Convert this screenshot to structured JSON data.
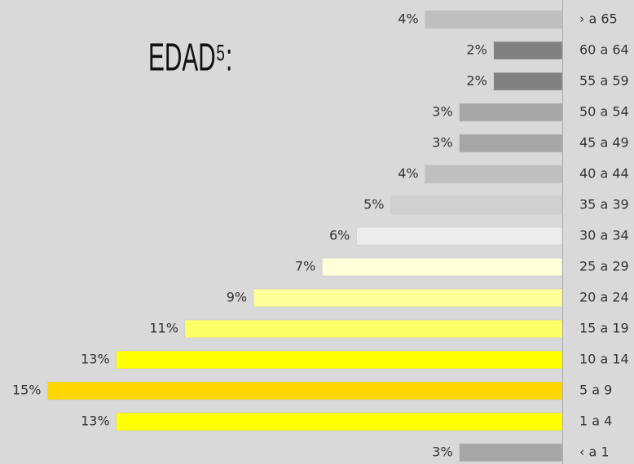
{
  "chart_data": {
    "type": "barh",
    "title": "EDAD⁵:",
    "categories": [
      "› a  65",
      "60 a 64",
      "55 a 59",
      "50 a 54",
      "45 a 49",
      "40 a 44",
      "35 a 39",
      "30 a 34",
      "25 a 29",
      "20 a 24",
      "15 a 19",
      "10 a 14",
      "5 a 9",
      "1 a 4",
      "‹ a 1"
    ],
    "values": [
      4,
      2,
      2,
      3,
      3,
      4,
      5,
      6,
      7,
      9,
      11,
      13,
      15,
      13,
      3
    ],
    "value_labels": [
      "4%",
      "2%",
      "2%",
      "3%",
      "3%",
      "4%",
      "5%",
      "6%",
      "7%",
      "9%",
      "11%",
      "13%",
      "15%",
      "13%",
      "3%"
    ],
    "colors": [
      "#bfbfbf",
      "#808080",
      "#808080",
      "#a6a6a6",
      "#a6a6a6",
      "#bfbfbf",
      "#d0d0d0",
      "#ececec",
      "#ffffd9",
      "#ffff99",
      "#ffff66",
      "#ffff00",
      "#ffd700",
      "#ffff00",
      "#a6a6a6"
    ]
  }
}
